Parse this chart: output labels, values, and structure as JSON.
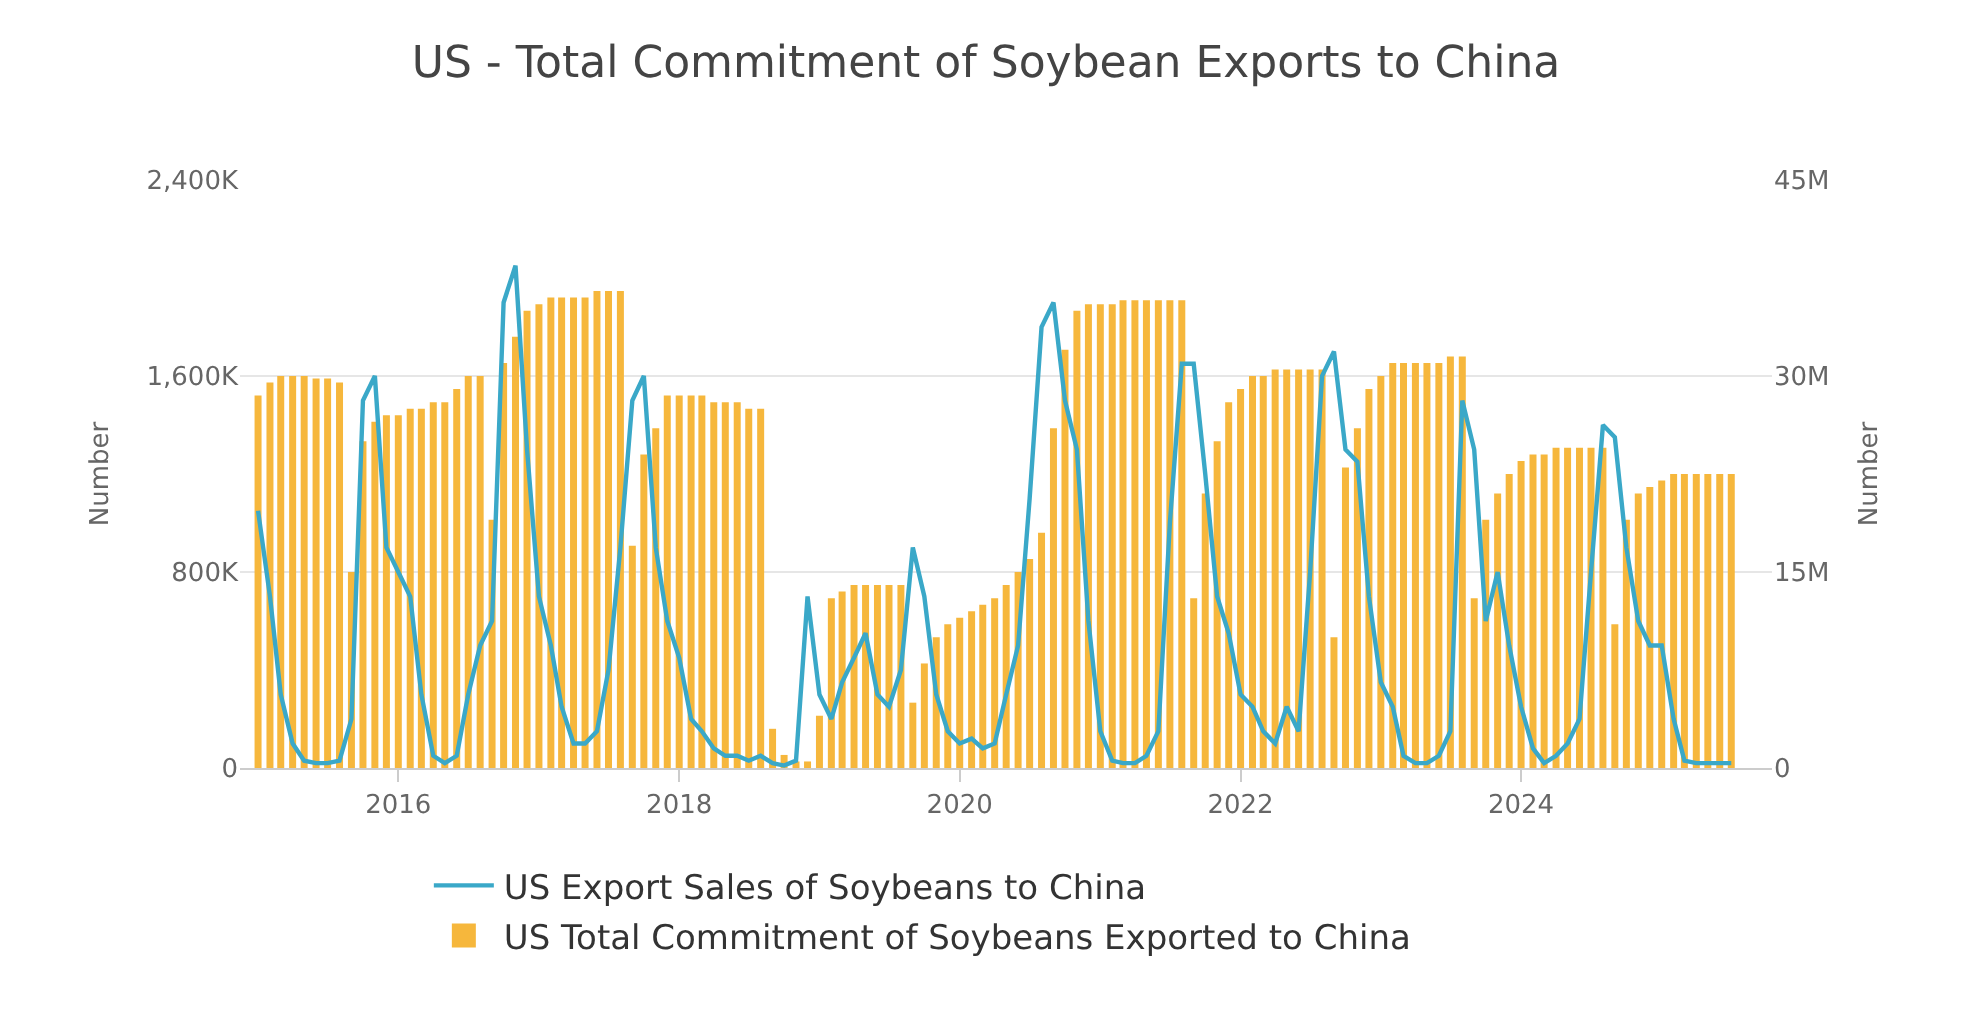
{
  "chart_data": {
    "type": "bar",
    "title": "US - Total Commitment of Soybean Exports to China",
    "ylabel": "Number",
    "y2label": "Number",
    "x": [
      "2015-01",
      "2015-02",
      "2015-03",
      "2015-04",
      "2015-05",
      "2015-06",
      "2015-07",
      "2015-08",
      "2015-09",
      "2015-10",
      "2015-11",
      "2015-12",
      "2016-01",
      "2016-02",
      "2016-03",
      "2016-04",
      "2016-05",
      "2016-06",
      "2016-07",
      "2016-08",
      "2016-09",
      "2016-10",
      "2016-11",
      "2016-12",
      "2017-01",
      "2017-02",
      "2017-03",
      "2017-04",
      "2017-05",
      "2017-06",
      "2017-07",
      "2017-08",
      "2017-09",
      "2017-10",
      "2017-11",
      "2017-12",
      "2018-01",
      "2018-02",
      "2018-03",
      "2018-04",
      "2018-05",
      "2018-06",
      "2018-07",
      "2018-08",
      "2018-09",
      "2018-10",
      "2018-11",
      "2018-12",
      "2019-01",
      "2019-02",
      "2019-03",
      "2019-04",
      "2019-05",
      "2019-06",
      "2019-07",
      "2019-08",
      "2019-09",
      "2019-10",
      "2019-11",
      "2019-12",
      "2020-01",
      "2020-02",
      "2020-03",
      "2020-04",
      "2020-05",
      "2020-06",
      "2020-07",
      "2020-08",
      "2020-09",
      "2020-10",
      "2020-11",
      "2020-12",
      "2021-01",
      "2021-02",
      "2021-03",
      "2021-04",
      "2021-05",
      "2021-06",
      "2021-07",
      "2021-08",
      "2021-09",
      "2021-10",
      "2021-11",
      "2021-12",
      "2022-01",
      "2022-02",
      "2022-03",
      "2022-04",
      "2022-05",
      "2022-06",
      "2022-07",
      "2022-08",
      "2022-09",
      "2022-10",
      "2022-11",
      "2022-12",
      "2023-01",
      "2023-02",
      "2023-03",
      "2023-04",
      "2023-05",
      "2023-06",
      "2023-07",
      "2023-08",
      "2023-09",
      "2023-10",
      "2023-11",
      "2023-12",
      "2024-01",
      "2024-02",
      "2024-03",
      "2024-04",
      "2024-05",
      "2024-06",
      "2024-07",
      "2024-08",
      "2024-09",
      "2024-10",
      "2024-11",
      "2024-12",
      "2025-01",
      "2025-02",
      "2025-03",
      "2025-04",
      "2025-05",
      "2025-06",
      "2025-07"
    ],
    "series": [
      {
        "name": "US Total Commitment of Soybeans Exported to China",
        "axis": "y2",
        "color": "#f6b73c",
        "values": [
          28500000,
          29500000,
          30000000,
          30000000,
          30000000,
          29800000,
          29800000,
          29500000,
          15000000,
          25000000,
          26500000,
          27000000,
          27000000,
          27500000,
          27500000,
          28000000,
          28000000,
          29000000,
          30000000,
          30000000,
          19000000,
          31000000,
          33000000,
          35000000,
          35500000,
          36000000,
          36000000,
          36000000,
          36000000,
          36500000,
          36500000,
          36500000,
          17000000,
          24000000,
          26000000,
          28500000,
          28500000,
          28500000,
          28500000,
          28000000,
          28000000,
          28000000,
          27500000,
          27500000,
          3000000,
          1000000,
          500000,
          500000,
          4000000,
          13000000,
          13500000,
          14000000,
          14000000,
          14000000,
          14000000,
          14000000,
          5000000,
          8000000,
          10000000,
          11000000,
          11500000,
          12000000,
          12500000,
          13000000,
          14000000,
          15000000,
          16000000,
          18000000,
          26000000,
          32000000,
          35000000,
          35500000,
          35500000,
          35500000,
          35800000,
          35800000,
          35800000,
          35800000,
          35800000,
          35800000,
          13000000,
          21000000,
          25000000,
          28000000,
          29000000,
          30000000,
          30000000,
          30500000,
          30500000,
          30500000,
          30500000,
          30500000,
          10000000,
          23000000,
          26000000,
          29000000,
          30000000,
          31000000,
          31000000,
          31000000,
          31000000,
          31000000,
          31500000,
          31500000,
          13000000,
          19000000,
          21000000,
          22500000,
          23500000,
          24000000,
          24000000,
          24500000,
          24500000,
          24500000,
          24500000,
          24500000,
          11000000,
          19000000,
          21000000,
          21500000,
          22000000,
          22500000,
          22500000,
          22500000,
          22500000,
          22500000,
          22500000
        ]
      },
      {
        "name": "US Export Sales of Soybeans to China",
        "type": "line",
        "color": "#3aa8c8",
        "values": [
          1050000,
          700000,
          300000,
          100000,
          30000,
          20000,
          20000,
          30000,
          200000,
          1500000,
          1600000,
          900000,
          800000,
          700000,
          300000,
          50000,
          20000,
          50000,
          300000,
          500000,
          600000,
          1900000,
          2050000,
          1300000,
          700000,
          500000,
          250000,
          100000,
          100000,
          150000,
          400000,
          900000,
          1500000,
          1600000,
          900000,
          600000,
          450000,
          200000,
          150000,
          80000,
          50000,
          50000,
          30000,
          50000,
          20000,
          10000,
          30000,
          700000,
          300000,
          200000,
          350000,
          450000,
          550000,
          300000,
          250000,
          400000,
          900000,
          700000,
          300000,
          150000,
          100000,
          120000,
          80000,
          100000,
          300000,
          500000,
          1100000,
          1800000,
          1900000,
          1500000,
          1300000,
          600000,
          150000,
          30000,
          20000,
          20000,
          50000,
          150000,
          1000000,
          1650000,
          1650000,
          1200000,
          700000,
          550000,
          300000,
          250000,
          150000,
          100000,
          250000,
          150000,
          800000,
          1600000,
          1700000,
          1300000,
          1250000,
          700000,
          350000,
          250000,
          50000,
          20000,
          20000,
          50000,
          150000,
          1500000,
          1300000,
          600000,
          800000,
          500000,
          250000,
          80000,
          20000,
          50000,
          100000,
          200000,
          800000,
          1400000,
          1350000,
          900000,
          600000,
          500000,
          500000,
          200000,
          30000,
          20000,
          20000,
          20000,
          20000
        ]
      }
    ],
    "xlim": [
      "2014-11-15",
      "2025-10-15"
    ],
    "xticks": [
      "2016",
      "2018",
      "2020",
      "2022",
      "2024"
    ],
    "ylim": [
      0,
      2400000
    ],
    "yticks": [
      {
        "value": 0,
        "label": "0"
      },
      {
        "value": 800000,
        "label": "800K"
      },
      {
        "value": 1600000,
        "label": "1,600K"
      },
      {
        "value": 2400000,
        "label": "2,400K"
      }
    ],
    "y2lim": [
      0,
      45000000
    ],
    "y2ticks": [
      {
        "value": 0,
        "label": "0"
      },
      {
        "value": 15000000,
        "label": "15M"
      },
      {
        "value": 30000000,
        "label": "30M"
      },
      {
        "value": 45000000,
        "label": "45M"
      }
    ],
    "grid": "y",
    "legend": "bottom",
    "line_style": "solid",
    "marker": "none"
  }
}
